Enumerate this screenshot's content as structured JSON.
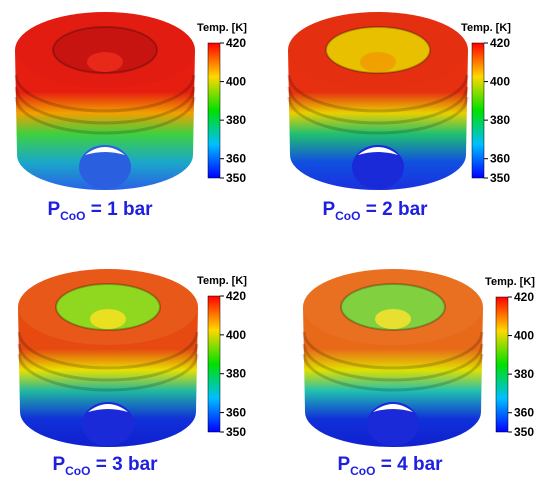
{
  "panels": [
    {
      "label": {
        "main": "P",
        "sub": "CoO",
        "rest": " = 1 bar"
      },
      "colorbar": {
        "title": "Temp. [K]",
        "range": [
          350,
          420
        ],
        "ticks": [
          350,
          360,
          380,
          400,
          420
        ]
      }
    },
    {
      "label": {
        "main": "P",
        "sub": "CoO",
        "rest": " = 2 bar"
      },
      "colorbar": {
        "title": "Temp. [K]",
        "range": [
          350,
          420
        ],
        "ticks": [
          350,
          360,
          380,
          400,
          420
        ]
      }
    },
    {
      "label": {
        "main": "P",
        "sub": "CoO",
        "rest": " = 3 bar"
      },
      "colorbar": {
        "title": "Temp. [K]",
        "range": [
          350,
          420
        ],
        "ticks": [
          350,
          360,
          380,
          400,
          420
        ]
      }
    },
    {
      "label": {
        "main": "P",
        "sub": "CoO",
        "rest": " = 4 bar"
      },
      "colorbar": {
        "title": "Temp. [K]",
        "range": [
          350,
          420
        ],
        "ticks": [
          350,
          360,
          380,
          400,
          420
        ]
      }
    }
  ]
}
